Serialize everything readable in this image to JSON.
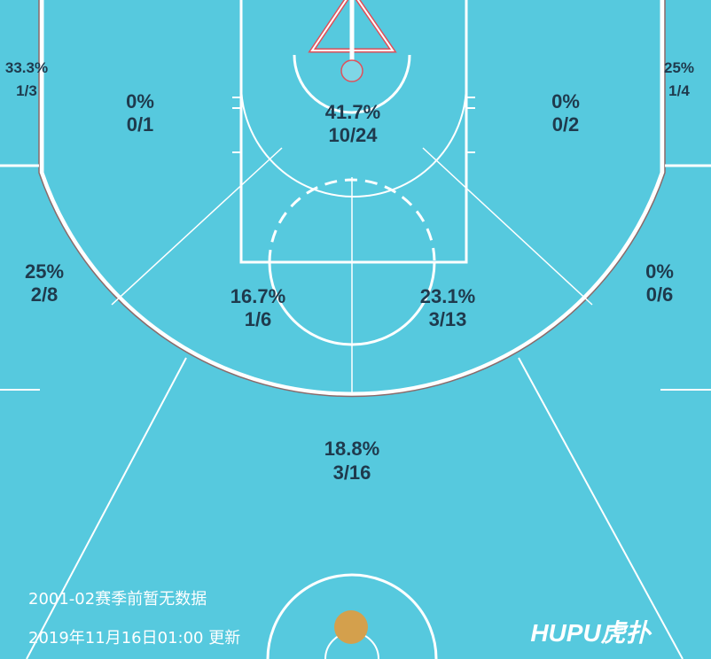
{
  "colors": {
    "court": "#56c9de",
    "lines": "#ffffff",
    "text": "#1f3a4d",
    "hoop": "#e0505a",
    "ball": "#d4a04c"
  },
  "zones": [
    {
      "id": "left-corner-3",
      "pct": "33.3%",
      "made": "1/3"
    },
    {
      "id": "left-baseline-mid",
      "pct": "0%",
      "made": "0/1"
    },
    {
      "id": "paint",
      "pct": "41.7%",
      "made": "10/24"
    },
    {
      "id": "right-baseline-mid",
      "pct": "0%",
      "made": "0/2"
    },
    {
      "id": "right-corner-3",
      "pct": "25%",
      "made": "1/4"
    },
    {
      "id": "left-wing-3",
      "pct": "25%",
      "made": "2/8"
    },
    {
      "id": "left-elbow-mid",
      "pct": "16.7%",
      "made": "1/6"
    },
    {
      "id": "right-elbow-mid",
      "pct": "23.1%",
      "made": "3/13"
    },
    {
      "id": "right-wing-3",
      "pct": "0%",
      "made": "0/6"
    },
    {
      "id": "top-of-key-3",
      "pct": "18.8%",
      "made": "3/16"
    }
  ],
  "footer": {
    "note": "2001-02赛季前暂无数据",
    "updated": "2019年11月16日01:00 更新",
    "logo": "HUPU虎扑"
  }
}
